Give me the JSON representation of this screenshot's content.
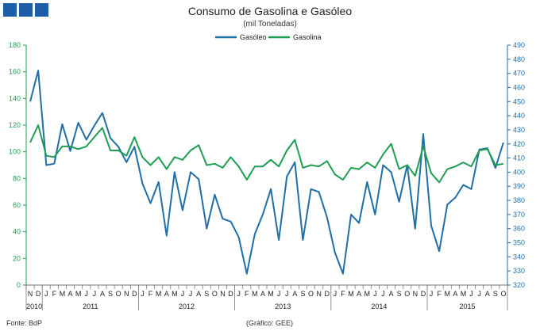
{
  "header": {
    "logo_squares": 3
  },
  "chart_data": {
    "type": "line",
    "title": "Consumo de Gasolina e Gasóleo",
    "subtitle": "(mil Toneladas)",
    "source": "Fonte: BdP",
    "credit": "(Gráfico: GEE)",
    "colors": {
      "gasoleo": "#1f6ea6",
      "gasolina": "#1f9e53"
    },
    "x": [
      "2010-11",
      "2010-12",
      "2011-01",
      "2011-02",
      "2011-03",
      "2011-04",
      "2011-05",
      "2011-06",
      "2011-07",
      "2011-08",
      "2011-09",
      "2011-10",
      "2011-11",
      "2011-12",
      "2012-01",
      "2012-02",
      "2012-03",
      "2012-04",
      "2012-05",
      "2012-06",
      "2012-07",
      "2012-08",
      "2012-09",
      "2012-10",
      "2012-11",
      "2012-12",
      "2013-01",
      "2013-02",
      "2013-03",
      "2013-04",
      "2013-05",
      "2013-06",
      "2013-07",
      "2013-08",
      "2013-09",
      "2013-10",
      "2013-11",
      "2013-12",
      "2014-01",
      "2014-02",
      "2014-03",
      "2014-04",
      "2014-05",
      "2014-06",
      "2014-07",
      "2014-08",
      "2014-09",
      "2014-10",
      "2014-11",
      "2014-12",
      "2015-01",
      "2015-02",
      "2015-03",
      "2015-04",
      "2015-05",
      "2015-06",
      "2015-07",
      "2015-08",
      "2015-09",
      "2015-10"
    ],
    "month_labels": [
      "N",
      "D",
      "J",
      "F",
      "M",
      "A",
      "M",
      "J",
      "J",
      "A",
      "S",
      "O",
      "N",
      "D",
      "J",
      "F",
      "M",
      "A",
      "M",
      "J",
      "J",
      "A",
      "S",
      "O",
      "N",
      "D",
      "J",
      "F",
      "M",
      "A",
      "M",
      "J",
      "J",
      "A",
      "S",
      "O",
      "N",
      "D",
      "J",
      "F",
      "M",
      "A",
      "M",
      "J",
      "J",
      "A",
      "S",
      "O",
      "N",
      "D",
      "J",
      "F",
      "M",
      "A",
      "M",
      "J",
      "J",
      "A",
      "S",
      "O"
    ],
    "years": [
      {
        "label": "2010",
        "start": 0,
        "end": 1
      },
      {
        "label": "2011",
        "start": 2,
        "end": 13
      },
      {
        "label": "2012",
        "start": 14,
        "end": 25
      },
      {
        "label": "2013",
        "start": 26,
        "end": 37
      },
      {
        "label": "2014",
        "start": 38,
        "end": 49
      },
      {
        "label": "2015",
        "start": 50,
        "end": 59
      }
    ],
    "legend": {
      "position": "top"
    },
    "y_left": {
      "ylim": [
        0,
        180
      ],
      "ticks": [
        0,
        20,
        40,
        60,
        80,
        100,
        120,
        140,
        160,
        180
      ]
    },
    "y_right": {
      "ylim": [
        320,
        490
      ],
      "ticks": [
        320,
        330,
        340,
        350,
        360,
        370,
        380,
        390,
        400,
        410,
        420,
        430,
        440,
        450,
        460,
        470,
        480,
        490
      ]
    },
    "series": [
      {
        "name": "Gasóleo",
        "axis": "right",
        "color": "#1f6ea6",
        "values": [
          450,
          472,
          405,
          406,
          434,
          415,
          435,
          423,
          433,
          442,
          424,
          418,
          407,
          418,
          392,
          378,
          393,
          355,
          400,
          373,
          400,
          395,
          360,
          384,
          367,
          365,
          354,
          328,
          356,
          370,
          388,
          352,
          397,
          407,
          352,
          388,
          386,
          368,
          343,
          328,
          370,
          364,
          393,
          370,
          405,
          400,
          379,
          405,
          360,
          427,
          362,
          344,
          377,
          382,
          391,
          388,
          416,
          417,
          403,
          421
        ]
      },
      {
        "name": "Gasolina",
        "axis": "left",
        "color": "#1f9e53",
        "values": [
          107,
          120,
          97,
          96,
          104,
          104,
          102,
          104,
          111,
          118,
          101,
          101,
          97,
          111,
          96,
          90,
          96,
          87,
          96,
          94,
          101,
          105,
          90,
          91,
          88,
          96,
          89,
          79,
          89,
          89,
          94,
          89,
          101,
          109,
          88,
          90,
          89,
          93,
          83,
          79,
          88,
          87,
          92,
          88,
          98,
          106,
          87,
          90,
          82,
          104,
          84,
          77,
          87,
          89,
          92,
          89,
          101,
          102,
          90,
          91
        ]
      }
    ]
  }
}
